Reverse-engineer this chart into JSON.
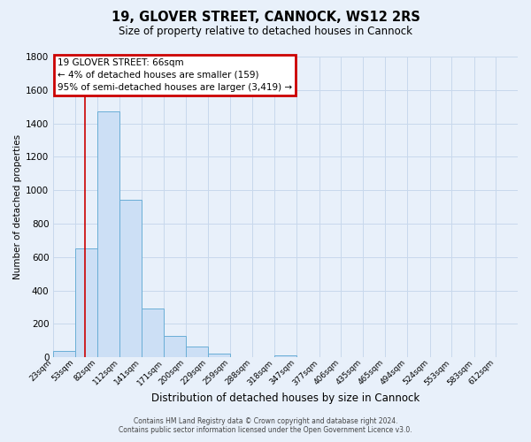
{
  "title": "19, GLOVER STREET, CANNOCK, WS12 2RS",
  "subtitle": "Size of property relative to detached houses in Cannock",
  "xlabel": "Distribution of detached houses by size in Cannock",
  "ylabel": "Number of detached properties",
  "bar_values": [
    40,
    650,
    1470,
    940,
    290,
    130,
    65,
    20,
    0,
    0,
    10,
    0,
    0,
    0,
    0,
    0,
    0,
    0,
    0,
    0
  ],
  "bin_labels": [
    "23sqm",
    "53sqm",
    "82sqm",
    "112sqm",
    "141sqm",
    "171sqm",
    "200sqm",
    "229sqm",
    "259sqm",
    "288sqm",
    "318sqm",
    "347sqm",
    "377sqm",
    "406sqm",
    "435sqm",
    "465sqm",
    "494sqm",
    "524sqm",
    "553sqm",
    "583sqm",
    "612sqm"
  ],
  "bar_color": "#ccdff5",
  "bar_edge_color": "#6aaed6",
  "grid_color": "#c8d8ec",
  "background_color": "#e8f0fa",
  "annotation_line1": "19 GLOVER STREET: 66sqm",
  "annotation_line2": "← 4% of detached houses are smaller (159)",
  "annotation_line3": "95% of semi-detached houses are larger (3,419) →",
  "annotation_box_color": "#ffffff",
  "annotation_box_edge_color": "#cc0000",
  "red_line_x": 66,
  "ylim": [
    0,
    1800
  ],
  "yticks": [
    0,
    200,
    400,
    600,
    800,
    1000,
    1200,
    1400,
    1600,
    1800
  ],
  "bin_edges": [
    23,
    53,
    82,
    112,
    141,
    171,
    200,
    229,
    259,
    288,
    318,
    347,
    377,
    406,
    435,
    465,
    494,
    524,
    553,
    583,
    612
  ],
  "footer_line1": "Contains HM Land Registry data © Crown copyright and database right 2024.",
  "footer_line2": "Contains public sector information licensed under the Open Government Licence v3.0."
}
